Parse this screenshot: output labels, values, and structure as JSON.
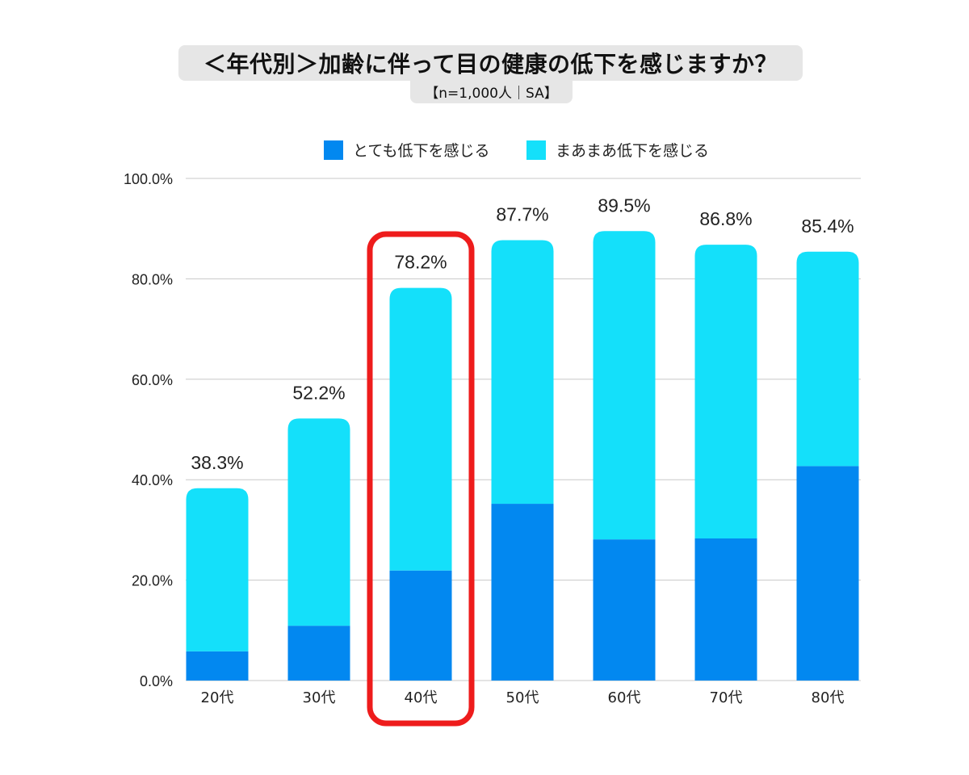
{
  "chart_data": {
    "type": "bar",
    "stacked": true,
    "title": "＜年代別＞加齢に伴って目の健康の低下を感じますか？",
    "subtitle": "【n=1,000人｜SA】",
    "categories": [
      "20代",
      "30代",
      "40代",
      "50代",
      "60代",
      "70代",
      "80代"
    ],
    "series": [
      {
        "name": "とても低下を感じる",
        "color": "#0288f0",
        "values": [
          5.8,
          10.9,
          21.9,
          35.2,
          28.1,
          28.3,
          42.7
        ]
      },
      {
        "name": "まあまあ低下を感じる",
        "color": "#14e0fa",
        "values": [
          32.5,
          41.3,
          56.3,
          52.5,
          61.4,
          58.5,
          42.7
        ]
      }
    ],
    "totals": [
      38.3,
      52.2,
      78.2,
      87.7,
      89.5,
      86.8,
      85.4
    ],
    "total_labels": [
      "38.3%",
      "52.2%",
      "78.2%",
      "87.7%",
      "89.5%",
      "86.8%",
      "85.4%"
    ],
    "y_ticks": [
      "0.0%",
      "20.0%",
      "40.0%",
      "60.0%",
      "80.0%",
      "100.0%"
    ],
    "ylim": [
      0,
      100
    ],
    "grid": true,
    "legend": "top",
    "highlight_category": "40代",
    "highlight_color": "#ee1c1c"
  }
}
